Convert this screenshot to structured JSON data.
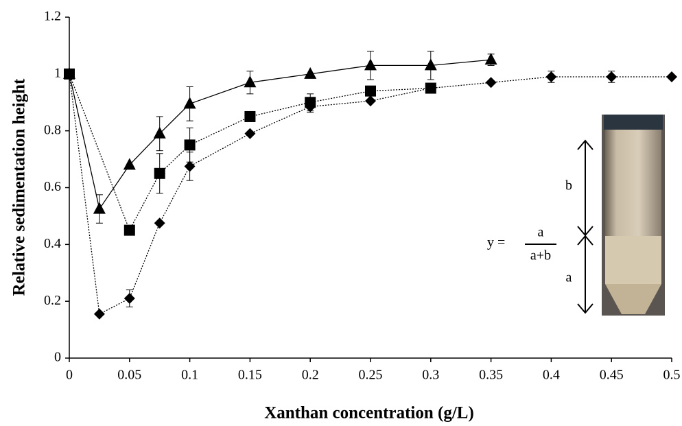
{
  "chart_data": {
    "type": "scatter",
    "x_label": "Xanthan concentration (g/L)",
    "y_label": "Relative sedimentation height",
    "xlim": [
      0,
      0.5
    ],
    "ylim": [
      0,
      1.2
    ],
    "xticks": [
      0,
      0.05,
      0.1,
      0.15,
      0.2,
      0.25,
      0.3,
      0.35,
      0.4,
      0.45,
      0.5
    ],
    "yticks": [
      0,
      0.2,
      0.4,
      0.6,
      0.8,
      1,
      1.2
    ],
    "grid": false,
    "series": [
      {
        "color": "#000000",
        "marker": "triangle",
        "line": "solid",
        "x": [
          0,
          0.025,
          0.05,
          0.075,
          0.1,
          0.15,
          0.2,
          0.25,
          0.3,
          0.35
        ],
        "values": [
          1,
          0.525,
          0.68,
          0.79,
          0.895,
          0.97,
          1.0,
          1.03,
          1.03,
          1.05
        ],
        "errors": [
          0,
          0.05,
          0,
          0.06,
          0.06,
          0.04,
          0,
          0.05,
          0.05,
          0.02
        ]
      },
      {
        "color": "#000000",
        "marker": "square",
        "line": "dotted",
        "x": [
          0,
          0.05,
          0.075,
          0.1,
          0.15,
          0.2,
          0.25,
          0.3
        ],
        "values": [
          1,
          0.45,
          0.65,
          0.75,
          0.85,
          0.9,
          0.94,
          0.95
        ],
        "errors": [
          0,
          0,
          0.07,
          0.06,
          0,
          0.03,
          0,
          0.01
        ]
      },
      {
        "color": "#000000",
        "marker": "diamond",
        "line": "dotted",
        "x": [
          0,
          0.025,
          0.05,
          0.075,
          0.1,
          0.15,
          0.2,
          0.25,
          0.3,
          0.35,
          0.4,
          0.45,
          0.5
        ],
        "values": [
          1,
          0.155,
          0.21,
          0.475,
          0.675,
          0.79,
          0.885,
          0.905,
          0.95,
          0.97,
          0.99,
          0.99,
          0.99
        ],
        "errors": [
          0,
          0,
          0.03,
          0,
          0.05,
          0,
          0.02,
          0,
          0,
          0,
          0.02,
          0.02,
          0
        ]
      }
    ],
    "annotations": [
      "y =",
      "a",
      "a+b",
      "b",
      "a"
    ]
  }
}
